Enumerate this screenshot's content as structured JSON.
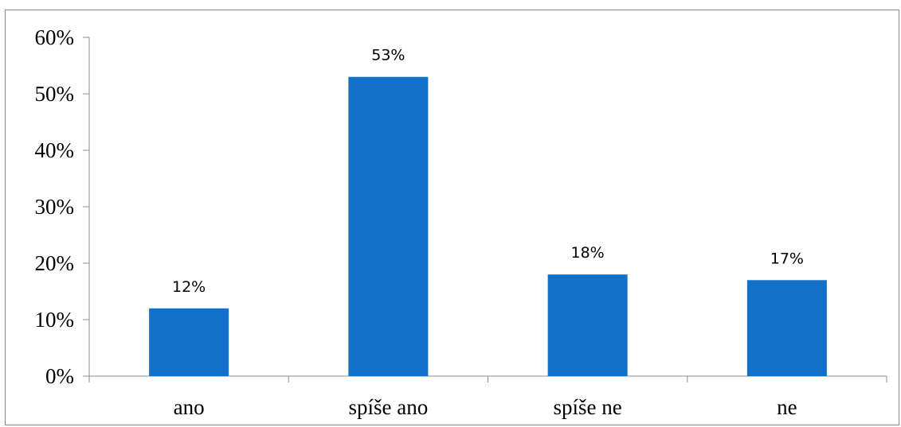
{
  "chart_data": {
    "type": "bar",
    "categories": [
      "ano",
      "spíše ano",
      "spíše ne",
      "ne"
    ],
    "values": [
      12,
      53,
      18,
      17
    ],
    "data_labels": [
      "12%",
      "53%",
      "18%",
      "17%"
    ],
    "y_tick_values": [
      0,
      10,
      20,
      30,
      40,
      50,
      60
    ],
    "y_tick_labels": [
      "0%",
      "10%",
      "20%",
      "30%",
      "40%",
      "50%",
      "60%"
    ],
    "ylim": [
      0,
      60
    ],
    "unit": "%",
    "title": "",
    "xlabel": "",
    "ylabel": "",
    "grid": false,
    "legend": "none",
    "bar_color": "#1170C8",
    "axis_color": "#8c8c8c"
  }
}
